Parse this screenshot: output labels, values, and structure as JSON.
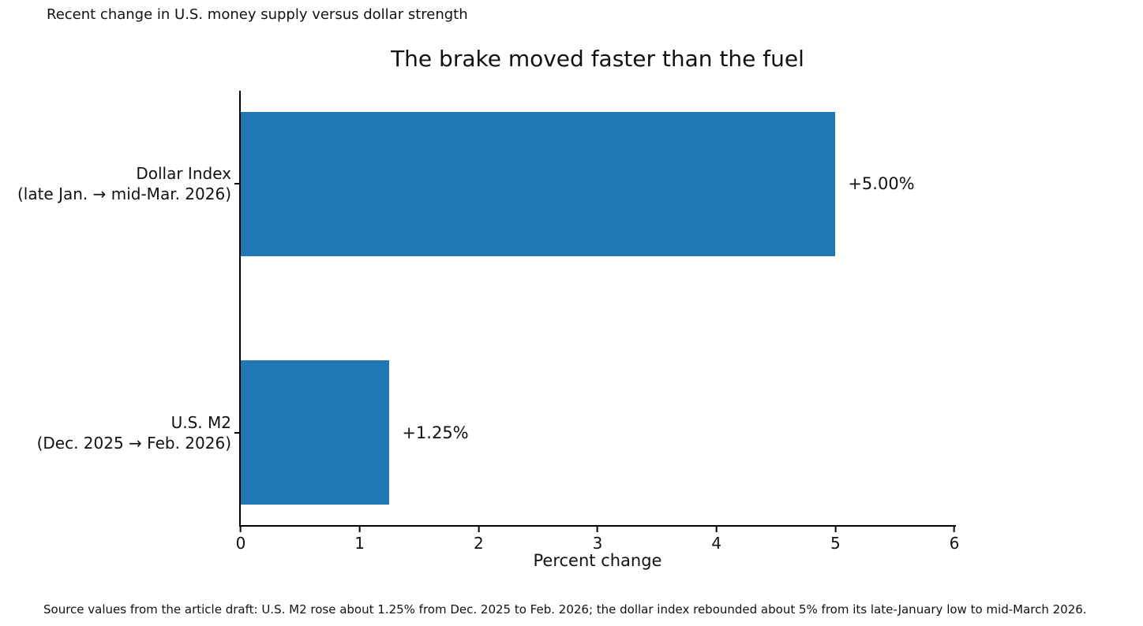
{
  "note_top_left": "Recent change in U.S. money supply versus dollar strength",
  "chart_data": {
    "type": "bar",
    "orientation": "horizontal",
    "title": "The brake moved faster than the fuel",
    "categories": [
      {
        "line1": "Dollar Index",
        "line2": "(late Jan. → mid-Mar. 2026)"
      },
      {
        "line1": "U.S. M2",
        "line2": "(Dec. 2025 → Feb. 2026)"
      }
    ],
    "values": [
      5.0,
      1.25
    ],
    "value_labels": [
      "+5.00%",
      "+1.25%"
    ],
    "xlabel": "Percent change",
    "xlim": [
      0,
      6
    ],
    "xticks": [
      0,
      1,
      2,
      3,
      4,
      5,
      6
    ],
    "bar_color": "#1f77b4",
    "grid": false,
    "legend": null
  },
  "source_note": "Source values from the article draft: U.S. M2 rose about 1.25% from Dec. 2025 to Feb. 2026; the dollar index rebounded about 5% from its late-January low to mid-March 2026."
}
